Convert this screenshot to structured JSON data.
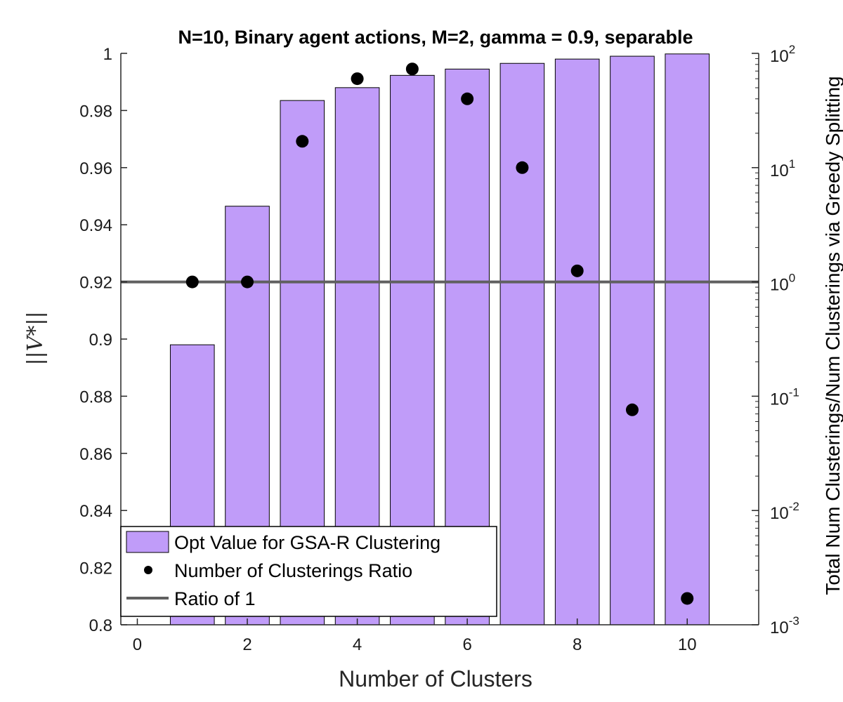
{
  "chart_data": {
    "type": "bar",
    "title": "N=10, Binary agent actions, M=2, gamma = 0.9, separable",
    "xlabel": "Number of Clusters",
    "ylabel_left": "||V*||",
    "ylabel_right": "Total Num Clusterings/Num Clusterings via Greedy Splitting",
    "xlim": [
      -0.3,
      11.3
    ],
    "xticks": [
      0,
      2,
      4,
      6,
      8,
      10
    ],
    "ylim_left": [
      0.8,
      1.0
    ],
    "yticks_left": [
      0.8,
      0.82,
      0.84,
      0.86,
      0.88,
      0.9,
      0.92,
      0.94,
      0.96,
      0.98,
      1
    ],
    "ytick_labels_left": [
      "0.8",
      "0.82",
      "0.84",
      "0.86",
      "0.88",
      "0.9",
      "0.92",
      "0.94",
      "0.96",
      "0.98",
      "1"
    ],
    "yscale_right": "log",
    "ylim_right": [
      0.001,
      100
    ],
    "yticks_right_exponents": [
      -3,
      -2,
      -1,
      0,
      1,
      2
    ],
    "categories": [
      1,
      2,
      3,
      4,
      5,
      6,
      7,
      8,
      9,
      10
    ],
    "series": [
      {
        "name": "Opt Value for GSA-R Clustering",
        "type": "bar",
        "axis": "left",
        "color": "#c09cf9",
        "values": [
          0.898,
          0.9465,
          0.9835,
          0.988,
          0.9923,
          0.9945,
          0.9965,
          0.998,
          0.999,
          0.9998
        ]
      },
      {
        "name": "Number of Clusterings Ratio",
        "type": "scatter",
        "axis": "right",
        "color": "#000000",
        "x": [
          1,
          2,
          3,
          4,
          5,
          6,
          7,
          8,
          9,
          10
        ],
        "values": [
          1.0,
          1.0,
          17.0,
          60.0,
          73.0,
          40.0,
          10.0,
          1.25,
          0.076,
          0.0017
        ]
      },
      {
        "name": "Ratio of 1",
        "type": "hline",
        "axis": "right",
        "color": "#606060",
        "value": 1
      }
    ],
    "legend_position": "bottom-left",
    "grid": false
  }
}
